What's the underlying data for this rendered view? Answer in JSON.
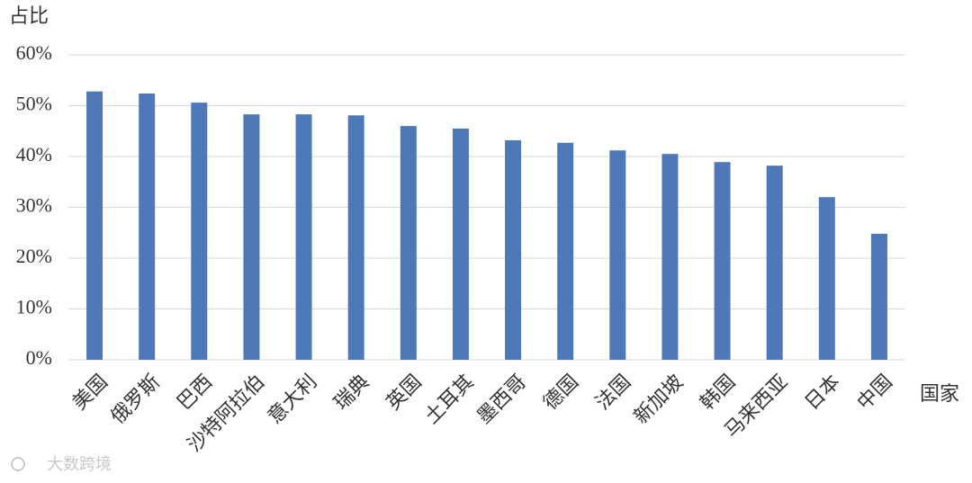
{
  "chart_data": {
    "type": "bar",
    "y_label": "占比",
    "x_label": "国家",
    "watermark": "大数跨境",
    "categories": [
      "美国",
      "俄罗斯",
      "巴西",
      "沙特阿拉伯",
      "意大利",
      "瑞典",
      "英国",
      "土耳其",
      "墨西哥",
      "德国",
      "法国",
      "新加坡",
      "韩国",
      "马来西亚",
      "日本",
      "中国"
    ],
    "values": [
      52.8,
      52.4,
      50.6,
      48.3,
      48.3,
      48.1,
      46.0,
      45.5,
      43.2,
      42.7,
      41.2,
      40.5,
      38.9,
      38.2,
      32.0,
      24.8
    ],
    "color": "#4f78b8",
    "ylim": [
      0,
      60
    ],
    "yticks": [
      {
        "value": 0,
        "label": "0%"
      },
      {
        "value": 10,
        "label": "10%"
      },
      {
        "value": 20,
        "label": "20%"
      },
      {
        "value": 30,
        "label": "30%"
      },
      {
        "value": 40,
        "label": "40%"
      },
      {
        "value": 50,
        "label": "50%"
      },
      {
        "value": 60,
        "label": "60%"
      }
    ],
    "grid": true
  }
}
